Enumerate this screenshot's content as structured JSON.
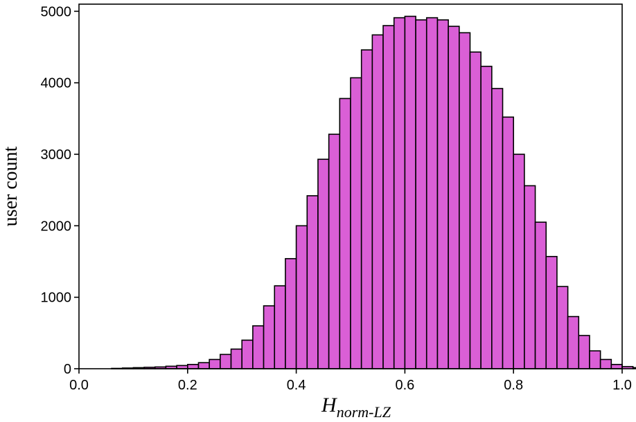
{
  "chart_data": {
    "type": "bar",
    "title": "",
    "xlabel": "H",
    "xlabel_subscript": "norm-LZ",
    "ylabel": "user count",
    "xlim": [
      0.0,
      1.0
    ],
    "ylim": [
      0,
      5100
    ],
    "bin_width": 0.02,
    "bin_start": 0.06,
    "values": [
      5,
      10,
      15,
      20,
      25,
      35,
      45,
      60,
      85,
      130,
      200,
      275,
      400,
      600,
      880,
      1160,
      1540,
      2000,
      2420,
      2930,
      3280,
      3780,
      4070,
      4460,
      4670,
      4800,
      4910,
      4930,
      4880,
      4910,
      4880,
      4790,
      4700,
      4430,
      4230,
      3920,
      3520,
      3000,
      2560,
      2050,
      1570,
      1150,
      730,
      465,
      250,
      130,
      60,
      30,
      15,
      8,
      5,
      3
    ],
    "xticks": [
      "0.0",
      "0.2",
      "0.4",
      "0.6",
      "0.8",
      "1.0"
    ],
    "yticks": [
      "0",
      "1000",
      "2000",
      "3000",
      "4000",
      "5000"
    ],
    "bar_color": "#da5fd6",
    "edge_color": "#000000",
    "grid": false
  }
}
